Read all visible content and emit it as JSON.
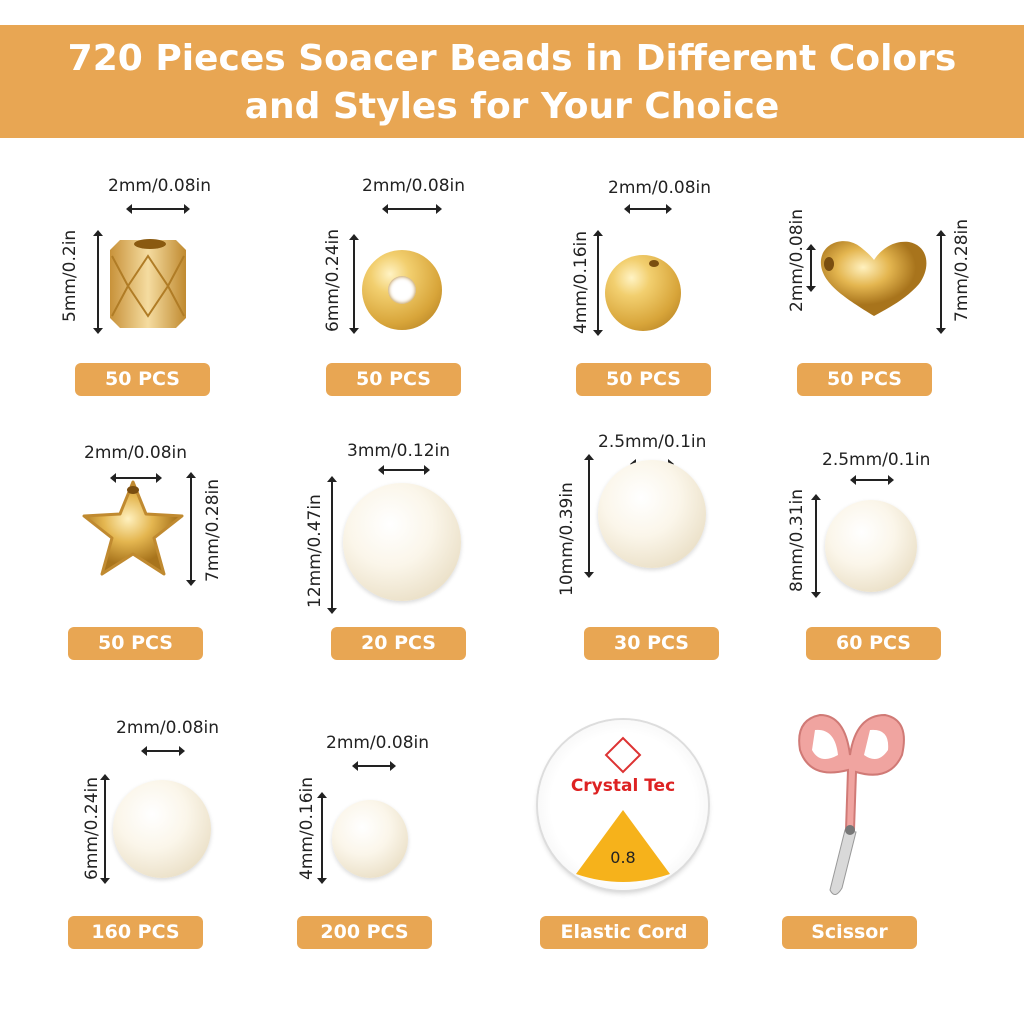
{
  "banner": {
    "line1": "720 Pieces Soacer Beads in Different Colors",
    "line2": "and Styles for Your Choice",
    "color": "#E8A653"
  },
  "items": [
    {
      "type": "faceted-tube-bead",
      "hole": "2mm/0.08in",
      "size": "5mm/0.2in",
      "count": "50 PCS"
    },
    {
      "type": "disc-spacer-bead",
      "hole": "2mm/0.08in",
      "size": "6mm/0.24in",
      "count": "50 PCS"
    },
    {
      "type": "round-gold-bead",
      "hole": "2mm/0.08in",
      "size": "4mm/0.16in",
      "count": "50 PCS"
    },
    {
      "type": "heart-bead",
      "hole": "2mm/0.08in",
      "size": "7mm/0.28in",
      "count": "50 PCS"
    },
    {
      "type": "star-bead",
      "hole": "2mm/0.08in",
      "size": "7mm/0.28in",
      "count": "50 PCS"
    },
    {
      "type": "pearl-bead",
      "hole": "3mm/0.12in",
      "size": "12mm/0.47in",
      "count": "20 PCS"
    },
    {
      "type": "pearl-bead",
      "hole": "2.5mm/0.1in",
      "size": "10mm/0.39in",
      "count": "30 PCS"
    },
    {
      "type": "pearl-bead",
      "hole": "2.5mm/0.1in",
      "size": "8mm/0.31in",
      "count": "60 PCS"
    },
    {
      "type": "pearl-bead",
      "hole": "2mm/0.08in",
      "size": "6mm/0.24in",
      "count": "160 PCS"
    },
    {
      "type": "pearl-bead",
      "hole": "2mm/0.08in",
      "size": "4mm/0.16in",
      "count": "200 PCS"
    },
    {
      "type": "elastic-cord-spool",
      "brand": "Crystal Tec",
      "gauge": "0.8",
      "count": "Elastic Cord"
    },
    {
      "type": "scissors",
      "count": "Scissor"
    }
  ]
}
